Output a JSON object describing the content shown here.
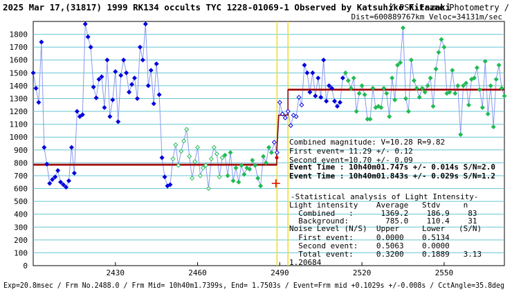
{
  "header": {
    "title": "2025 Mar 17,(31817) 1999 RK134 occults TYC 1228-01069-1 Observed by Katsuhiko Kitazaki",
    "subtitle1": "/ PSF-Frame Photometry /",
    "subtitle2": "Dist=600889767km Veloc=34131m/sec"
  },
  "chart_data": {
    "type": "scatter",
    "xlim": [
      2400,
      2572
    ],
    "ylim": [
      0,
      1900
    ],
    "x_ticks": [
      2430,
      2460,
      2490,
      2520,
      2550
    ],
    "y_ticks": [
      0,
      100,
      200,
      300,
      400,
      500,
      600,
      700,
      800,
      900,
      1000,
      1100,
      1200,
      1300,
      1400,
      1500,
      1600,
      1700,
      1800
    ],
    "gridlines": "horizontal",
    "event_lines": [
      2489.0,
      2493.0
    ],
    "levels": [
      {
        "name": "Background",
        "value": 785.0,
        "x_range": [
          2400,
          2489
        ]
      },
      {
        "name": "Combined",
        "value": 1369.2,
        "x_range": [
          2493,
          2572
        ]
      }
    ],
    "model": [
      [
        2400,
        785
      ],
      [
        2488.9,
        785
      ],
      [
        2488.9,
        900
      ],
      [
        2489.6,
        1170
      ],
      [
        2493,
        1172
      ],
      [
        2493,
        1369
      ],
      [
        2572,
        1369
      ]
    ],
    "markers": [
      {
        "name": "red-cross",
        "x": 2488.6,
        "y": 640
      },
      {
        "name": "red-star",
        "x": 2488.9,
        "y": 840
      }
    ],
    "series": [
      {
        "name": "Outside event (blue)",
        "points": [
          [
            2400,
            1500
          ],
          [
            2401,
            1380
          ],
          [
            2402,
            1270
          ],
          [
            2403,
            1740
          ],
          [
            2404,
            920
          ],
          [
            2405,
            790
          ],
          [
            2406,
            640
          ],
          [
            2407,
            670
          ],
          [
            2408,
            690
          ],
          [
            2409,
            740
          ],
          [
            2410,
            650
          ],
          [
            2411,
            630
          ],
          [
            2412,
            610
          ],
          [
            2413,
            660
          ],
          [
            2414,
            920
          ],
          [
            2415,
            720
          ],
          [
            2416,
            1200
          ],
          [
            2417,
            1160
          ],
          [
            2418,
            1175
          ],
          [
            2419,
            1880
          ],
          [
            2420,
            1780
          ],
          [
            2421,
            1700
          ],
          [
            2422,
            1390
          ],
          [
            2423,
            1305
          ],
          [
            2424,
            1450
          ],
          [
            2425,
            1470
          ],
          [
            2426,
            1230
          ],
          [
            2427,
            1600
          ],
          [
            2428,
            1160
          ],
          [
            2429,
            1290
          ],
          [
            2430,
            1510
          ],
          [
            2431,
            1120
          ],
          [
            2432,
            1480
          ],
          [
            2433,
            1600
          ],
          [
            2434,
            1500
          ],
          [
            2435,
            1350
          ],
          [
            2436,
            1410
          ],
          [
            2437,
            1460
          ],
          [
            2438,
            1300
          ],
          [
            2439,
            1700
          ],
          [
            2440,
            1600
          ],
          [
            2441,
            1880
          ],
          [
            2442,
            1400
          ],
          [
            2443,
            1520
          ],
          [
            2444,
            1260
          ],
          [
            2445,
            1570
          ],
          [
            2446,
            1330
          ],
          [
            2447,
            840
          ],
          [
            2448,
            690
          ],
          [
            2449,
            620
          ],
          [
            2450,
            630
          ]
        ]
      },
      {
        "name": "Occultation (green)",
        "points": [
          [
            2451,
            830
          ],
          [
            2452,
            940
          ],
          [
            2453,
            780
          ],
          [
            2454,
            890
          ],
          [
            2455,
            970
          ],
          [
            2456,
            1060
          ],
          [
            2457,
            850
          ],
          [
            2458,
            680
          ],
          [
            2459,
            810
          ],
          [
            2460,
            920
          ],
          [
            2461,
            700
          ],
          [
            2462,
            760
          ],
          [
            2463,
            780
          ],
          [
            2464,
            600
          ],
          [
            2465,
            830
          ],
          [
            2466,
            920
          ],
          [
            2467,
            870
          ],
          [
            2468,
            690
          ],
          [
            2469,
            840
          ],
          [
            2470,
            860
          ],
          [
            2471,
            700
          ],
          [
            2472,
            880
          ],
          [
            2473,
            660
          ],
          [
            2474,
            760
          ],
          [
            2475,
            650
          ],
          [
            2476,
            780
          ],
          [
            2477,
            710
          ],
          [
            2478,
            760
          ],
          [
            2479,
            750
          ],
          [
            2480,
            820
          ],
          [
            2481,
            780
          ],
          [
            2482,
            680
          ],
          [
            2483,
            620
          ],
          [
            2484,
            850
          ],
          [
            2485,
            800
          ],
          [
            2486,
            920
          ],
          [
            2487,
            880
          ]
        ]
      },
      {
        "name": "Event region (blue open)",
        "points": [
          [
            2488,
            960
          ],
          [
            2489,
            880
          ],
          [
            2490,
            1270
          ],
          [
            2491,
            1180
          ],
          [
            2492,
            1150
          ],
          [
            2493,
            1200
          ],
          [
            2494,
            1090
          ],
          [
            2495,
            1170
          ],
          [
            2496,
            1160
          ],
          [
            2497,
            1310
          ],
          [
            2498,
            1250
          ]
        ]
      },
      {
        "name": "Reappearance blue",
        "points": [
          [
            2499,
            1560
          ],
          [
            2500,
            1500
          ],
          [
            2501,
            1350
          ],
          [
            2502,
            1500
          ],
          [
            2503,
            1320
          ],
          [
            2504,
            1460
          ],
          [
            2505,
            1310
          ],
          [
            2506,
            1600
          ],
          [
            2507,
            1280
          ],
          [
            2508,
            1400
          ],
          [
            2509,
            1380
          ],
          [
            2510,
            1280
          ],
          [
            2511,
            1240
          ],
          [
            2512,
            1270
          ],
          [
            2513,
            1460
          ]
        ]
      },
      {
        "name": "After event (green)",
        "points": [
          [
            2514,
            1500
          ],
          [
            2515,
            1440
          ],
          [
            2516,
            1380
          ],
          [
            2517,
            1460
          ],
          [
            2518,
            1200
          ],
          [
            2519,
            1340
          ],
          [
            2520,
            1400
          ],
          [
            2521,
            1330
          ],
          [
            2522,
            1140
          ],
          [
            2523,
            1140
          ],
          [
            2524,
            1380
          ],
          [
            2525,
            1230
          ],
          [
            2526,
            1240
          ],
          [
            2527,
            1230
          ],
          [
            2528,
            1380
          ],
          [
            2529,
            1340
          ],
          [
            2530,
            1160
          ],
          [
            2531,
            1460
          ],
          [
            2532,
            1290
          ],
          [
            2533,
            1560
          ],
          [
            2534,
            1580
          ],
          [
            2535,
            1850
          ],
          [
            2536,
            1300
          ],
          [
            2537,
            1200
          ],
          [
            2538,
            1600
          ],
          [
            2539,
            1440
          ],
          [
            2540,
            1380
          ],
          [
            2541,
            1310
          ],
          [
            2542,
            1380
          ],
          [
            2543,
            1350
          ],
          [
            2544,
            1400
          ],
          [
            2545,
            1460
          ],
          [
            2546,
            1240
          ],
          [
            2547,
            1530
          ],
          [
            2548,
            1660
          ],
          [
            2549,
            1760
          ],
          [
            2550,
            1700
          ],
          [
            2551,
            1340
          ],
          [
            2552,
            1350
          ],
          [
            2553,
            1520
          ],
          [
            2554,
            1340
          ],
          [
            2555,
            1400
          ],
          [
            2556,
            1020
          ],
          [
            2557,
            1400
          ],
          [
            2558,
            1420
          ],
          [
            2559,
            1250
          ],
          [
            2560,
            1450
          ],
          [
            2561,
            1460
          ],
          [
            2562,
            1540
          ],
          [
            2563,
            1370
          ],
          [
            2564,
            1230
          ],
          [
            2565,
            1590
          ],
          [
            2566,
            1180
          ],
          [
            2567,
            1400
          ],
          [
            2568,
            1080
          ],
          [
            2569,
            1450
          ],
          [
            2570,
            1560
          ],
          [
            2571,
            1380
          ],
          [
            2572,
            1320
          ]
        ]
      }
    ],
    "annotations": {
      "combined_magnitude": "Combined magnitude:  V=10.28  R=9.82",
      "first_event": "First event= 11.29 +/- 0.12",
      "second_event": "Second event=10.70 +/- 0.09",
      "event_time_1": "Event Time : 10h40m01.747s  +/- 0.014s  S/N=2.0",
      "event_time_2": "Event Time : 10h40m01.843s  +/- 0.029s  S/N=1.2"
    },
    "stats": {
      "title": "-Statistical analysis of Light Intensity-",
      "header_row": "Light intensity    Average   Stdv     n",
      "combined_row": "  Combined   :      1369.2    186.9    83",
      "background_row": "  Background:        785.0    110.4    31",
      "noise_header": "Noise Level (N/S)  Upper     Lower   (S/N)",
      "first_row": "  First event:     0.0000    0.5134",
      "second_row": "  Second event:    0.5063    0.0000",
      "total_row": "  Total event:     0.3200    0.1889   3.13"
    },
    "extra_value": "1.20684",
    "footer": "Exp=20.8msec / Frm No.2488.0 / Frm Mid= 10h40m1.7399s, End= 1.7503s / Event=Frm mid +0.1029s +/-0.008s / CctAngle=35.8deg"
  },
  "colors": {
    "blue": "#0000dd",
    "green": "#22bb55",
    "link_line": "#8899ee",
    "grid": "#66c6d4",
    "level": "#cc3333",
    "event_line": "#f0dc28",
    "model": "#880000"
  }
}
